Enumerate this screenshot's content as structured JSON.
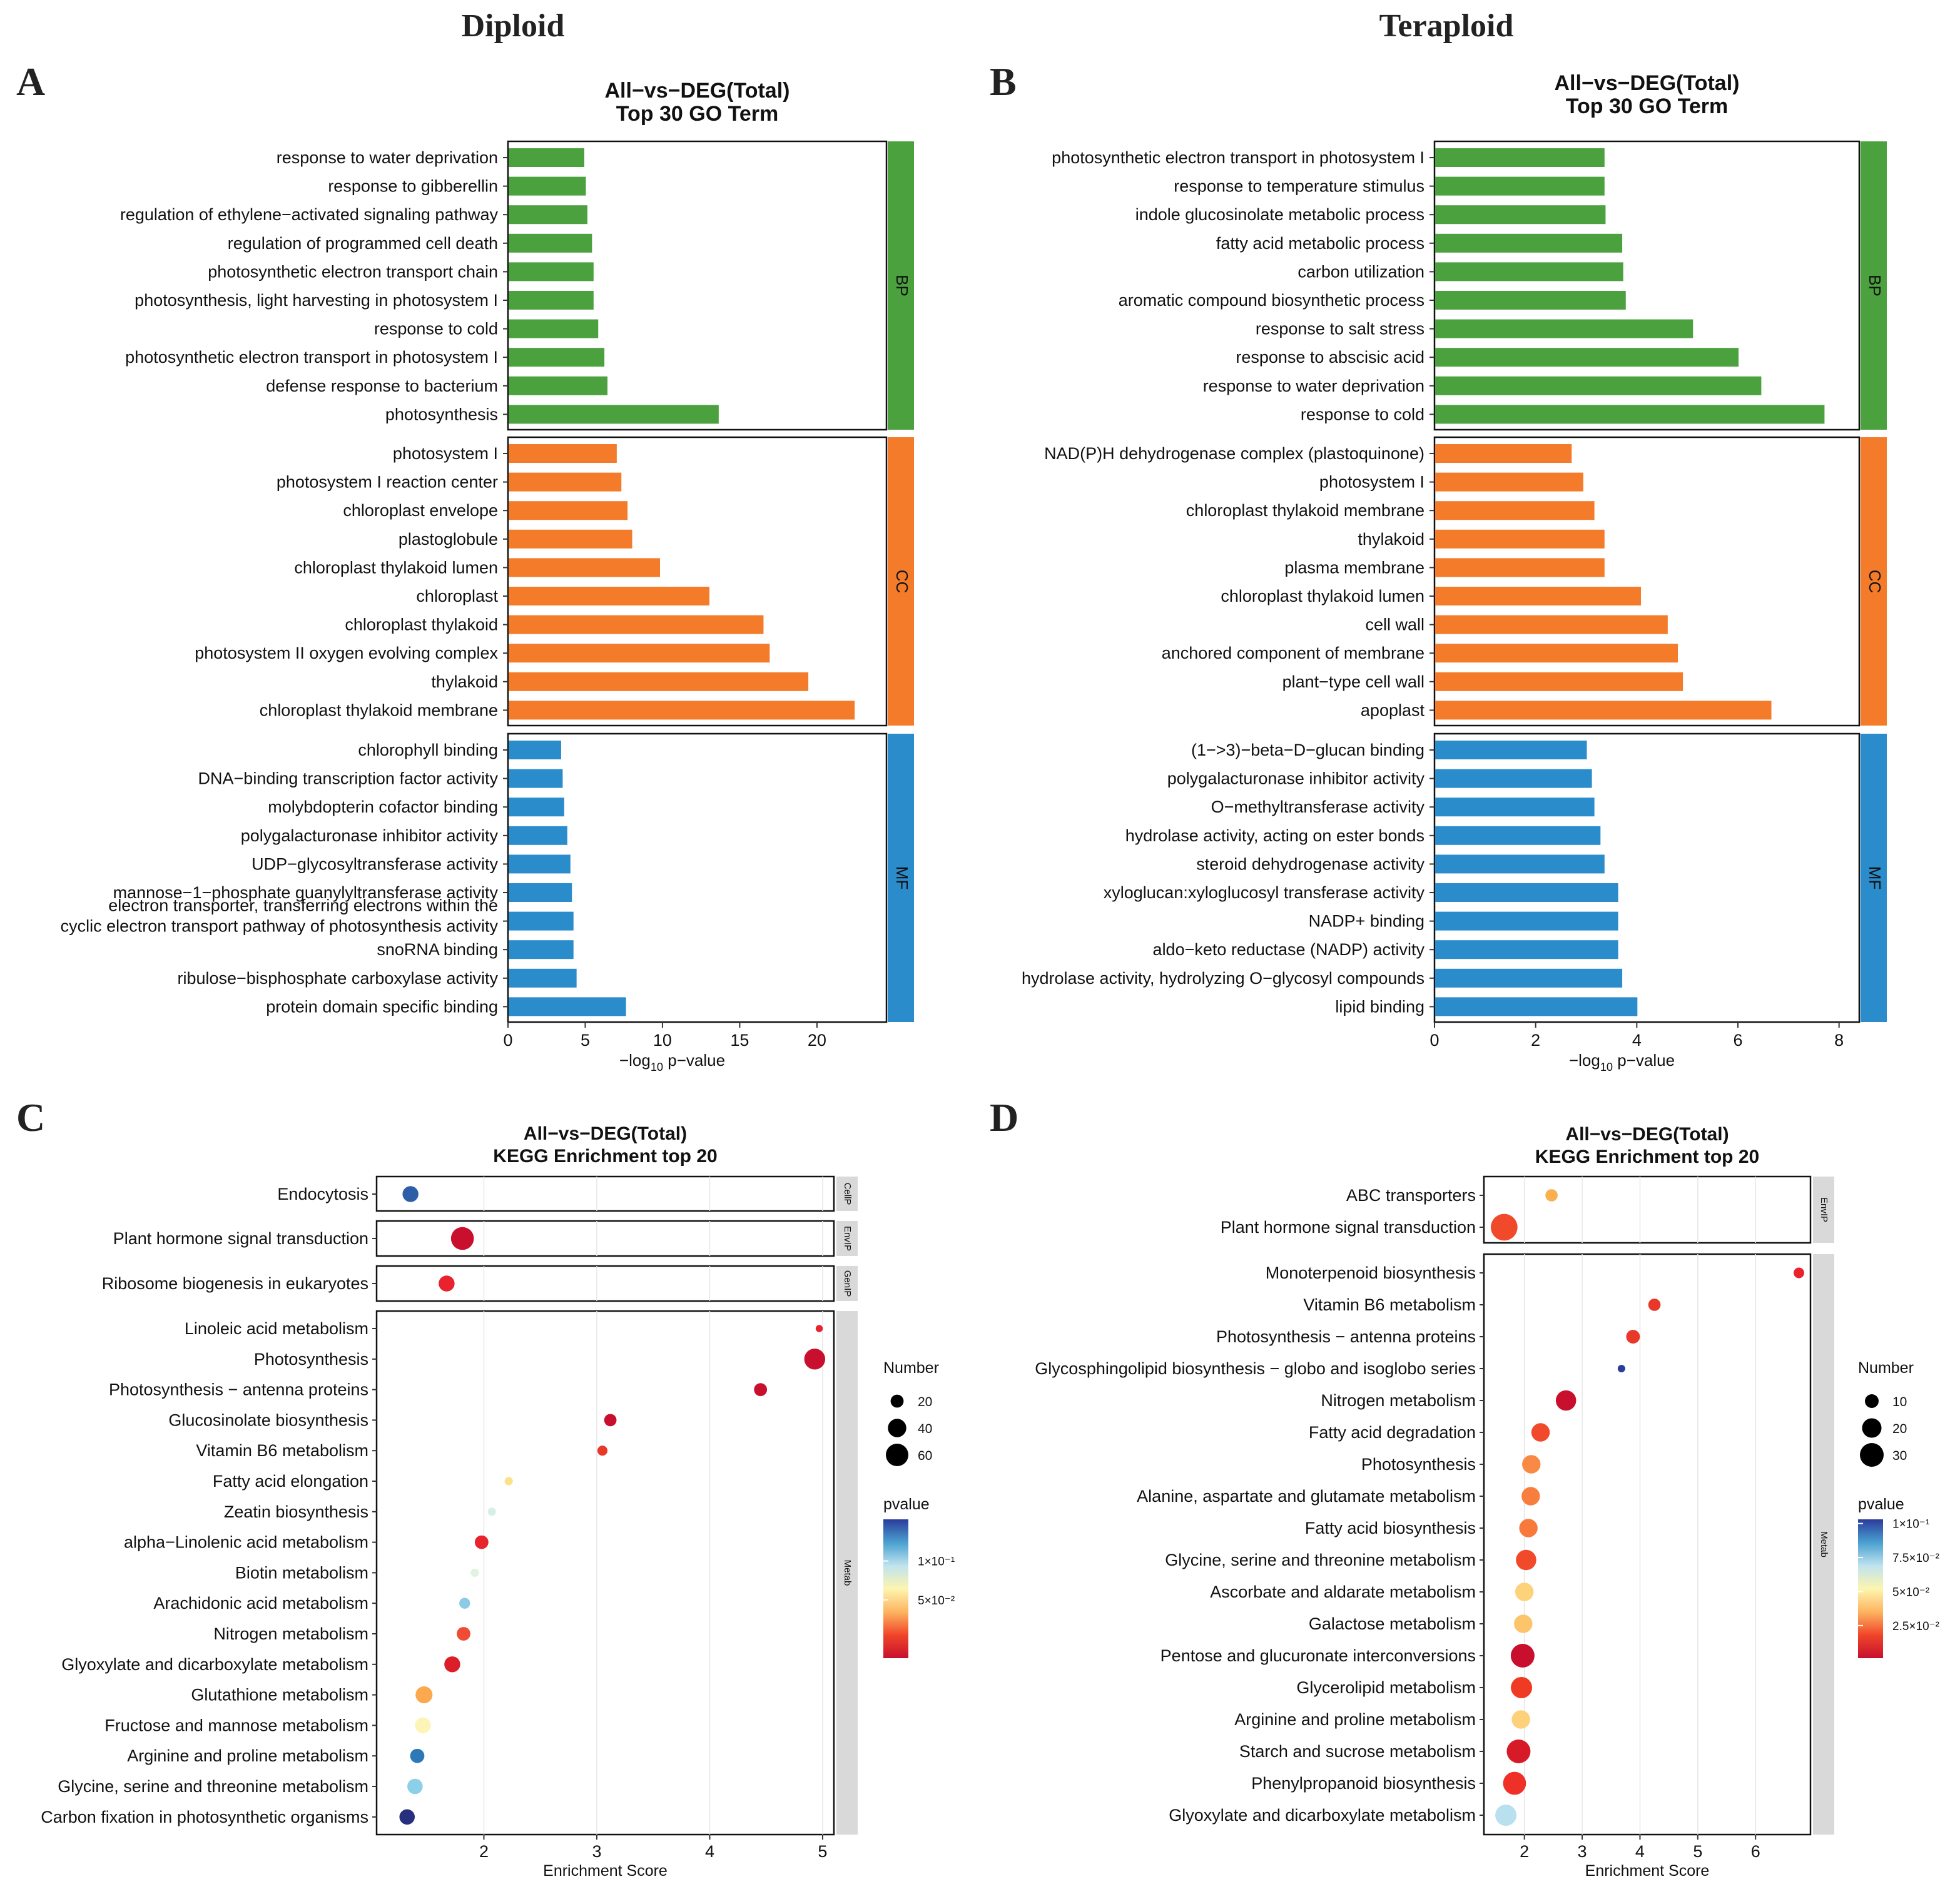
{
  "figure": {
    "headers": [
      "Diploid",
      "Teraploid"
    ],
    "panel_letters": [
      "A",
      "B",
      "C",
      "D"
    ]
  },
  "chart_data": [
    {
      "panel": "A",
      "type": "bar",
      "orientation": "horizontal",
      "title": "All−vs−DEG(Total)",
      "subtitle": "Top 30 GO Term",
      "xlabel": "−log₁₀ p−value",
      "xlim": [
        0,
        24.5
      ],
      "xticks": [
        0,
        5,
        10,
        15,
        20
      ],
      "groups": [
        {
          "name": "BP",
          "color": "#4aa13d",
          "terms": [
            "response to water deprivation",
            "response to gibberellin",
            "regulation of ethylene−activated signaling pathway",
            "regulation of programmed cell death",
            "photosynthetic electron transport chain",
            "photosynthesis, light harvesting in photosystem I",
            "response to cold",
            "photosynthetic electron transport in photosystem I",
            "defense response to bacterium",
            "photosynthesis"
          ],
          "values": [
            4.9,
            5.0,
            5.1,
            5.4,
            5.5,
            5.5,
            5.8,
            6.2,
            6.4,
            13.6
          ]
        },
        {
          "name": "CC",
          "color": "#f47b2a",
          "terms": [
            "photosystem I",
            "photosystem I reaction center",
            "chloroplast envelope",
            "plastoglobule",
            "chloroplast thylakoid lumen",
            "chloroplast",
            "chloroplast thylakoid",
            "photosystem II oxygen evolving complex",
            "thylakoid",
            "chloroplast thylakoid membrane"
          ],
          "values": [
            7.0,
            7.3,
            7.7,
            8.0,
            9.8,
            13.0,
            16.5,
            16.9,
            19.4,
            22.4
          ]
        },
        {
          "name": "MF",
          "color": "#2b8ccc",
          "terms": [
            "chlorophyll binding",
            "DNA−binding transcription factor activity",
            "molybdopterin cofactor binding",
            "polygalacturonase inhibitor activity",
            "UDP−glycosyltransferase activity",
            "mannose−1−phosphate guanylyltransferase activity",
            "electron transporter, transferring electrons within the cyclic electron transport pathway of photosynthesis activity",
            "snoRNA binding",
            "ribulose−bisphosphate carboxylase activity",
            "protein domain specific binding"
          ],
          "values": [
            3.4,
            3.5,
            3.6,
            3.8,
            4.0,
            4.1,
            4.2,
            4.2,
            4.4,
            7.6
          ]
        }
      ]
    },
    {
      "panel": "B",
      "type": "bar",
      "orientation": "horizontal",
      "title": "All−vs−DEG(Total)",
      "subtitle": "Top 30 GO Term",
      "xlabel": "−log₁₀ p−value",
      "xlim": [
        0,
        8.4
      ],
      "xticks": [
        0,
        2,
        4,
        6,
        8
      ],
      "groups": [
        {
          "name": "BP",
          "color": "#4aa13d",
          "terms": [
            "photosynthetic electron transport in photosystem I",
            "response to temperature stimulus",
            "indole glucosinolate metabolic process",
            "fatty acid metabolic process",
            "carbon utilization",
            "aromatic compound biosynthetic process",
            "response to salt stress",
            "response to abscisic acid",
            "response to water deprivation",
            "response to cold"
          ],
          "values": [
            3.35,
            3.35,
            3.37,
            3.7,
            3.72,
            3.77,
            5.1,
            6.0,
            6.45,
            7.7
          ]
        },
        {
          "name": "CC",
          "color": "#f47b2a",
          "terms": [
            "NAD(P)H dehydrogenase complex (plastoquinone)",
            "photosystem I",
            "chloroplast thylakoid membrane",
            "thylakoid",
            "plasma membrane",
            "chloroplast thylakoid lumen",
            "cell wall",
            "anchored component of membrane",
            "plant−type cell wall",
            "apoplast"
          ],
          "values": [
            2.7,
            2.93,
            3.15,
            3.35,
            3.35,
            4.07,
            4.6,
            4.8,
            4.9,
            6.65
          ]
        },
        {
          "name": "MF",
          "color": "#2b8ccc",
          "terms": [
            "(1−>3)−beta−D−glucan binding",
            "polygalacturonase inhibitor activity",
            "O−methyltransferase activity",
            "hydrolase activity, acting on ester bonds",
            "steroid dehydrogenase activity",
            "xyloglucan:xyloglucosyl transferase activity",
            "NADP+ binding",
            "aldo−keto reductase (NADP) activity",
            "hydrolase activity, hydrolyzing O−glycosyl compounds",
            "lipid binding"
          ],
          "values": [
            3.0,
            3.1,
            3.15,
            3.27,
            3.35,
            3.62,
            3.62,
            3.62,
            3.7,
            4.0
          ]
        }
      ]
    },
    {
      "panel": "C",
      "type": "scatter",
      "title": "All−vs−DEG(Total)",
      "subtitle": "KEGG Enrichment top 20",
      "xlabel": "Enrichment Score",
      "xlim": [
        1.05,
        5.1
      ],
      "xticks": [
        2,
        3,
        4,
        5
      ],
      "size_legend": {
        "title": "Number",
        "values": [
          20,
          40,
          60
        ]
      },
      "color_legend": {
        "title": "pvalue",
        "labels": [
          "1×10⁻¹",
          "5×10⁻²"
        ],
        "colors": [
          "#2b3c9c",
          "#4aa0d0",
          "#bfe3ee",
          "#fdf5b0",
          "#fdb460",
          "#f0452a",
          "#c8102e"
        ]
      },
      "facets": [
        {
          "name": "CellP",
          "points": [
            {
              "term": "Endocytosis",
              "x": 1.35,
              "n": 30,
              "color": "#2d5fa8"
            }
          ]
        },
        {
          "name": "EnvIP",
          "points": [
            {
              "term": "Plant hormone signal transduction",
              "x": 1.81,
              "n": 62,
              "color": "#c8102e"
            }
          ]
        },
        {
          "name": "GenIP",
          "points": [
            {
              "term": "Ribosome biogenesis in eukaryotes",
              "x": 1.67,
              "n": 30,
              "color": "#e8232d"
            }
          ]
        },
        {
          "name": "Metab",
          "points": [
            {
              "term": "Linoleic acid metabolism",
              "x": 4.97,
              "n": 6,
              "color": "#e8232d"
            },
            {
              "term": "Photosynthesis",
              "x": 4.93,
              "n": 52,
              "color": "#c8102e"
            },
            {
              "term": "Photosynthesis − antenna proteins",
              "x": 4.45,
              "n": 20,
              "color": "#c8102e"
            },
            {
              "term": "Glucosinolate biosynthesis",
              "x": 3.12,
              "n": 18,
              "color": "#c8102e"
            },
            {
              "term": "Vitamin B6 metabolism",
              "x": 3.05,
              "n": 12,
              "color": "#e8382a"
            },
            {
              "term": "Fatty acid elongation",
              "x": 2.22,
              "n": 8,
              "color": "#fde08a"
            },
            {
              "term": "Zeatin biosynthesis",
              "x": 2.07,
              "n": 8,
              "color": "#d8efe8"
            },
            {
              "term": "alpha−Linolenic acid metabolism",
              "x": 1.98,
              "n": 22,
              "color": "#e8232d"
            },
            {
              "term": "Biotin metabolism",
              "x": 1.92,
              "n": 8,
              "color": "#e0f2e0"
            },
            {
              "term": "Arachidonic acid metabolism",
              "x": 1.83,
              "n": 14,
              "color": "#8ccbe6"
            },
            {
              "term": "Nitrogen metabolism",
              "x": 1.82,
              "n": 22,
              "color": "#ef4b35"
            },
            {
              "term": "Glyoxylate and dicarboxylate metabolism",
              "x": 1.72,
              "n": 30,
              "color": "#dc1e2a"
            },
            {
              "term": "Glutathione metabolism",
              "x": 1.47,
              "n": 34,
              "color": "#fba84f"
            },
            {
              "term": "Fructose and mannose metabolism",
              "x": 1.46,
              "n": 30,
              "color": "#fdf5b8"
            },
            {
              "term": "Arginine and proline metabolism",
              "x": 1.41,
              "n": 24,
              "color": "#2f78b8"
            },
            {
              "term": "Glycine, serine and threonine metabolism",
              "x": 1.39,
              "n": 28,
              "color": "#8ccfe8"
            },
            {
              "term": "Carbon fixation in photosynthetic organisms",
              "x": 1.32,
              "n": 28,
              "color": "#26307e"
            }
          ]
        }
      ]
    },
    {
      "panel": "D",
      "type": "scatter",
      "title": "All−vs−DEG(Total)",
      "subtitle": "KEGG Enrichment top 20",
      "xlabel": "Enrichment Score",
      "xlim": [
        1.3,
        6.95
      ],
      "xticks": [
        2,
        3,
        4,
        5,
        6
      ],
      "size_legend": {
        "title": "Number",
        "values": [
          10,
          20,
          30
        ]
      },
      "color_legend": {
        "title": "pvalue",
        "labels": [
          "1×10⁻¹",
          "7.5×10⁻²",
          "5×10⁻²",
          "2.5×10⁻²"
        ],
        "colors": [
          "#2b3c9c",
          "#4aa0d0",
          "#bfe3ee",
          "#fdf5b0",
          "#fdb460",
          "#f0452a",
          "#c8102e"
        ]
      },
      "facets": [
        {
          "name": "EnvIP",
          "points": [
            {
              "term": "ABC transporters",
              "x": 2.47,
              "n": 8,
              "color": "#fbb04f"
            },
            {
              "term": "Plant hormone signal transduction",
              "x": 1.65,
              "n": 38,
              "color": "#f04a2a"
            }
          ]
        },
        {
          "name": "Metab",
          "points": [
            {
              "term": "Monoterpenoid biosynthesis",
              "x": 6.75,
              "n": 6,
              "color": "#e8232d"
            },
            {
              "term": "Vitamin B6 metabolism",
              "x": 4.25,
              "n": 8,
              "color": "#e8382a"
            },
            {
              "term": "Photosynthesis − antenna proteins",
              "x": 3.88,
              "n": 10,
              "color": "#e8382a"
            },
            {
              "term": "Glycosphingolipid biosynthesis − globo and isoglobo series",
              "x": 3.68,
              "n": 3,
              "color": "#2b3c9c"
            },
            {
              "term": "Nitrogen metabolism",
              "x": 2.72,
              "n": 22,
              "color": "#c8102e"
            },
            {
              "term": "Fatty acid degradation",
              "x": 2.28,
              "n": 18,
              "color": "#f04a2a"
            },
            {
              "term": "Photosynthesis",
              "x": 2.12,
              "n": 18,
              "color": "#f98a45"
            },
            {
              "term": "Alanine, aspartate and glutamate metabolism",
              "x": 2.11,
              "n": 18,
              "color": "#f77e3e"
            },
            {
              "term": "Fatty acid biosynthesis",
              "x": 2.07,
              "n": 18,
              "color": "#f77a3c"
            },
            {
              "term": "Glycine, serine and threonine metabolism",
              "x": 2.03,
              "n": 22,
              "color": "#f04a2a"
            },
            {
              "term": "Ascorbate and aldarate metabolism",
              "x": 2.0,
              "n": 18,
              "color": "#fdd27a"
            },
            {
              "term": "Galactose metabolism",
              "x": 1.98,
              "n": 18,
              "color": "#fcc56c"
            },
            {
              "term": "Pentose and glucuronate interconversions",
              "x": 1.97,
              "n": 30,
              "color": "#c8102e"
            },
            {
              "term": "Glycerolipid metabolism",
              "x": 1.95,
              "n": 24,
              "color": "#ef3a24"
            },
            {
              "term": "Arginine and proline metabolism",
              "x": 1.94,
              "n": 18,
              "color": "#fdd07a"
            },
            {
              "term": "Starch and sucrose metabolism",
              "x": 1.9,
              "n": 30,
              "color": "#d71a28"
            },
            {
              "term": "Phenylpropanoid biosynthesis",
              "x": 1.83,
              "n": 28,
              "color": "#ef3028"
            },
            {
              "term": "Glyoxylate and dicarboxylate metabolism",
              "x": 1.68,
              "n": 24,
              "color": "#b8e0ee"
            }
          ]
        }
      ]
    }
  ]
}
